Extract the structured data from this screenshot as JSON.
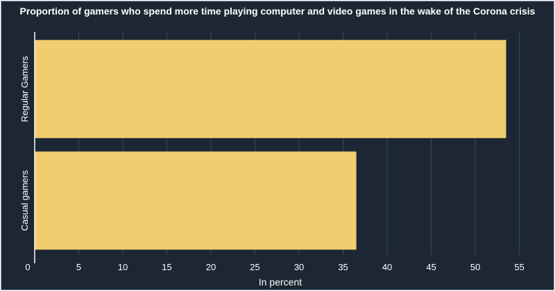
{
  "chart_data": {
    "type": "bar",
    "orientation": "horizontal",
    "title": "Proportion of gamers who spend more time playing computer and video games in the wake of the Corona crisis",
    "xlabel": "In percent",
    "ylabel": "",
    "categories": [
      "Regular Gamers",
      "Casual gamers"
    ],
    "values": [
      53.5,
      36.5
    ],
    "xlim": [
      0,
      57
    ],
    "xticks": [
      0,
      5,
      10,
      15,
      20,
      25,
      30,
      35,
      40,
      45,
      50,
      55
    ],
    "grid": true,
    "colors": {
      "background": "#1c2733",
      "bar": "#f0cd6e",
      "grid": "#3b4a5a",
      "text": "#ffffff"
    }
  }
}
